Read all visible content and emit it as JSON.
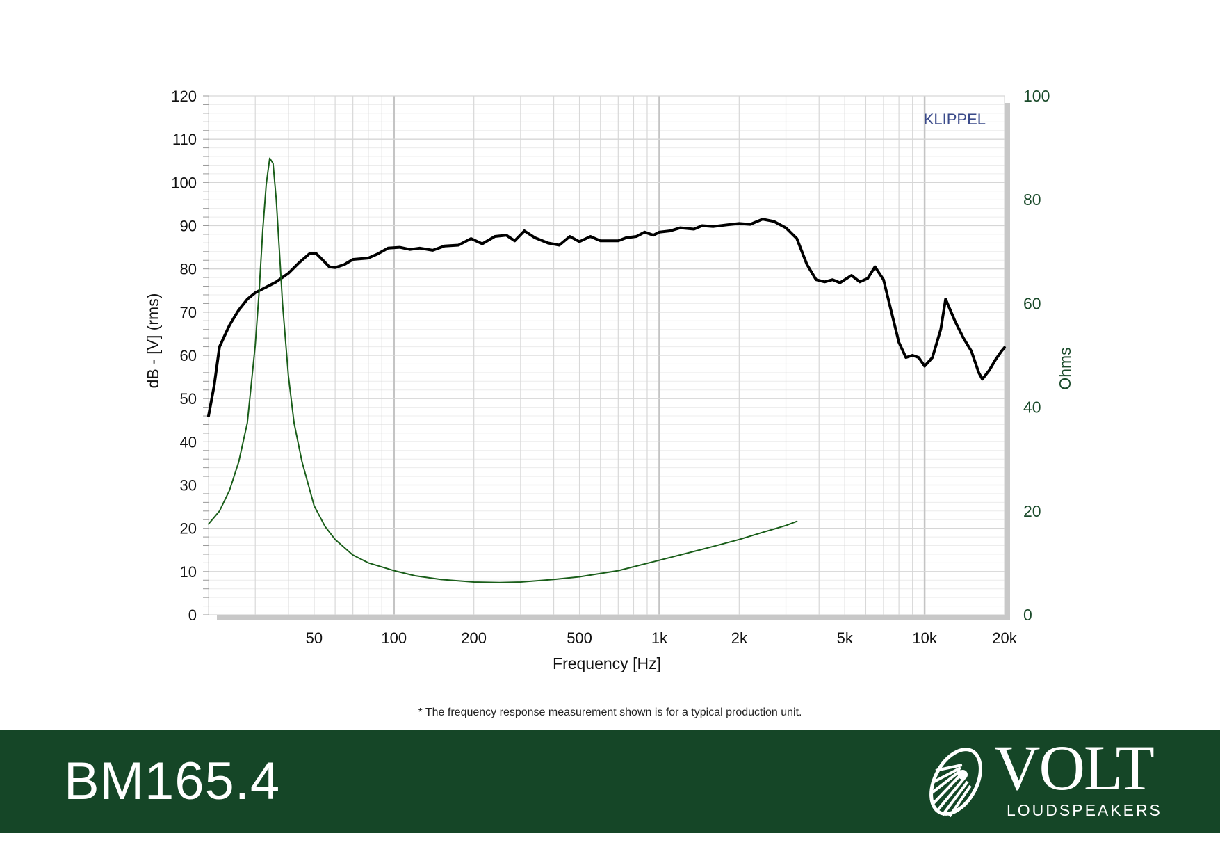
{
  "chart_data": {
    "type": "line",
    "watermark": "KLIPPEL",
    "xlabel": "Frequency [Hz]",
    "ylabel_left": "dB - [V] (rms)",
    "ylabel_right": "Ohms",
    "x_scale": "log",
    "xlim": [
      20,
      20000
    ],
    "ylim_left": [
      0,
      120
    ],
    "ylim_right": [
      0,
      100
    ],
    "x_ticks": [
      {
        "value": 50,
        "label": "50"
      },
      {
        "value": 100,
        "label": "100"
      },
      {
        "value": 200,
        "label": "200"
      },
      {
        "value": 500,
        "label": "500"
      },
      {
        "value": 1000,
        "label": "1k"
      },
      {
        "value": 2000,
        "label": "2k"
      },
      {
        "value": 5000,
        "label": "5k"
      },
      {
        "value": 10000,
        "label": "10k"
      },
      {
        "value": 20000,
        "label": "20k"
      }
    ],
    "y_ticks_left": [
      0,
      10,
      20,
      30,
      40,
      50,
      60,
      70,
      80,
      90,
      100,
      110,
      120
    ],
    "y_ticks_right": [
      0,
      20,
      40,
      60,
      80,
      100
    ],
    "grid": true,
    "colors": {
      "spl": "#000000",
      "impedance": "#1a5e1a",
      "right_axis": "#1a4a2a",
      "watermark": "#3a4a8a"
    },
    "series": [
      {
        "key": "spl",
        "axis": "left",
        "points": [
          [
            20,
            46
          ],
          [
            21,
            53
          ],
          [
            22,
            62
          ],
          [
            24,
            67
          ],
          [
            26,
            70.5
          ],
          [
            28,
            73
          ],
          [
            30,
            74.5
          ],
          [
            33,
            75.8
          ],
          [
            36,
            77
          ],
          [
            40,
            79
          ],
          [
            44,
            81.5
          ],
          [
            48,
            83.5
          ],
          [
            51,
            83.5
          ],
          [
            54,
            82
          ],
          [
            57,
            80.5
          ],
          [
            60,
            80.3
          ],
          [
            65,
            81
          ],
          [
            70,
            82.2
          ],
          [
            80,
            82.5
          ],
          [
            87,
            83.5
          ],
          [
            95,
            84.8
          ],
          [
            105,
            85
          ],
          [
            115,
            84.5
          ],
          [
            125,
            84.8
          ],
          [
            140,
            84.3
          ],
          [
            155,
            85.3
          ],
          [
            175,
            85.5
          ],
          [
            195,
            87
          ],
          [
            215,
            85.8
          ],
          [
            240,
            87.5
          ],
          [
            265,
            87.8
          ],
          [
            285,
            86.5
          ],
          [
            310,
            88.8
          ],
          [
            340,
            87.2
          ],
          [
            380,
            86
          ],
          [
            420,
            85.5
          ],
          [
            460,
            87.5
          ],
          [
            500,
            86.3
          ],
          [
            550,
            87.5
          ],
          [
            600,
            86.5
          ],
          [
            700,
            86.5
          ],
          [
            750,
            87.2
          ],
          [
            820,
            87.5
          ],
          [
            880,
            88.5
          ],
          [
            950,
            87.8
          ],
          [
            1000,
            88.5
          ],
          [
            1100,
            88.8
          ],
          [
            1200,
            89.5
          ],
          [
            1350,
            89.2
          ],
          [
            1450,
            90
          ],
          [
            1600,
            89.8
          ],
          [
            1800,
            90.2
          ],
          [
            2000,
            90.5
          ],
          [
            2200,
            90.3
          ],
          [
            2450,
            91.5
          ],
          [
            2700,
            91
          ],
          [
            3000,
            89.5
          ],
          [
            3300,
            87
          ],
          [
            3600,
            81
          ],
          [
            3900,
            77.5
          ],
          [
            4200,
            77
          ],
          [
            4500,
            77.5
          ],
          [
            4800,
            76.8
          ],
          [
            5300,
            78.5
          ],
          [
            5700,
            77
          ],
          [
            6100,
            77.8
          ],
          [
            6500,
            80.5
          ],
          [
            7000,
            77.5
          ],
          [
            7500,
            70
          ],
          [
            8000,
            63
          ],
          [
            8500,
            59.5
          ],
          [
            9000,
            60
          ],
          [
            9500,
            59.5
          ],
          [
            10000,
            57.5
          ],
          [
            10700,
            59.5
          ],
          [
            11500,
            66
          ],
          [
            12000,
            73
          ],
          [
            13000,
            68
          ],
          [
            14000,
            64
          ],
          [
            15000,
            61
          ],
          [
            16000,
            56
          ],
          [
            16500,
            54.5
          ],
          [
            17500,
            56.5
          ],
          [
            18500,
            59
          ],
          [
            19500,
            61
          ],
          [
            20000,
            61.8
          ]
        ]
      },
      {
        "key": "impedance",
        "axis": "right",
        "points": [
          [
            20,
            17.5
          ],
          [
            22,
            20
          ],
          [
            24,
            24
          ],
          [
            26,
            29.5
          ],
          [
            28,
            37
          ],
          [
            30,
            52
          ],
          [
            31,
            62
          ],
          [
            32,
            74
          ],
          [
            33,
            83
          ],
          [
            34,
            88
          ],
          [
            35,
            87
          ],
          [
            36,
            80
          ],
          [
            37,
            70
          ],
          [
            38,
            60
          ],
          [
            40,
            46
          ],
          [
            42,
            37
          ],
          [
            45,
            29.5
          ],
          [
            50,
            21
          ],
          [
            55,
            17
          ],
          [
            60,
            14.5
          ],
          [
            70,
            11.5
          ],
          [
            80,
            10
          ],
          [
            100,
            8.5
          ],
          [
            120,
            7.5
          ],
          [
            150,
            6.8
          ],
          [
            200,
            6.3
          ],
          [
            250,
            6.2
          ],
          [
            300,
            6.3
          ],
          [
            400,
            6.8
          ],
          [
            500,
            7.3
          ],
          [
            700,
            8.5
          ],
          [
            1000,
            10.5
          ],
          [
            1500,
            12.8
          ],
          [
            2000,
            14.5
          ],
          [
            2500,
            16
          ],
          [
            3000,
            17.2
          ],
          [
            3300,
            18
          ]
        ]
      }
    ]
  },
  "footnote": "* The frequency response measurement shown is for a typical production unit.",
  "footer": {
    "model": "BM165.4",
    "brand_name": "VOLT",
    "brand_sub": "LOUDSPEAKERS",
    "background": "#154627"
  }
}
